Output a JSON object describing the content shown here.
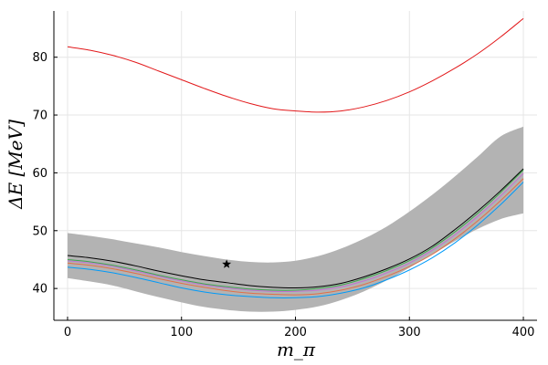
{
  "chart_data": {
    "type": "line",
    "xlabel": "m_π",
    "ylabel": "ΔE [MeV]",
    "xlim": [
      -12,
      412
    ],
    "ylim": [
      34.5,
      88
    ],
    "xticks": [
      0,
      100,
      200,
      300,
      400
    ],
    "yticks": [
      40,
      50,
      60,
      70,
      80
    ],
    "grid": true,
    "legend": "none",
    "band": {
      "color": "#b3b3b3",
      "x": [
        0,
        20,
        40,
        60,
        80,
        100,
        120,
        140,
        160,
        180,
        200,
        220,
        240,
        260,
        280,
        300,
        320,
        340,
        360,
        380,
        400
      ],
      "upper": [
        49.6,
        49.1,
        48.5,
        47.8,
        47.1,
        46.3,
        45.6,
        45.0,
        44.6,
        44.5,
        44.8,
        45.6,
        46.9,
        48.6,
        50.7,
        53.3,
        56.2,
        59.4,
        62.8,
        66.3,
        68.0
      ],
      "lower": [
        41.8,
        41.2,
        40.5,
        39.5,
        38.5,
        37.6,
        36.8,
        36.3,
        36.0,
        36.0,
        36.3,
        36.9,
        38.0,
        39.5,
        41.4,
        43.6,
        45.9,
        48.2,
        50.3,
        52.0,
        53.0
      ]
    },
    "x": [
      0,
      20,
      40,
      60,
      80,
      100,
      120,
      140,
      160,
      180,
      200,
      220,
      240,
      260,
      280,
      300,
      320,
      340,
      360,
      380,
      400
    ],
    "series": [
      {
        "color": "#e2181a",
        "values": [
          81.8,
          81.2,
          80.3,
          79.1,
          77.6,
          76.1,
          74.6,
          73.2,
          72.0,
          71.1,
          70.7,
          70.5,
          70.7,
          71.4,
          72.5,
          74.0,
          75.9,
          78.1,
          80.6,
          83.5,
          86.7
        ]
      },
      {
        "color": "#000000",
        "values": [
          45.7,
          45.3,
          44.7,
          43.9,
          43.0,
          42.2,
          41.5,
          41.0,
          40.5,
          40.2,
          40.1,
          40.3,
          40.9,
          42.0,
          43.4,
          45.1,
          47.3,
          50.2,
          53.4,
          56.9,
          60.7
        ]
      },
      {
        "color": "#3da44d",
        "values": [
          45.0,
          44.6,
          44.0,
          43.2,
          42.3,
          41.5,
          40.8,
          40.3,
          39.9,
          39.7,
          39.7,
          40.0,
          40.6,
          41.7,
          43.1,
          44.8,
          47.0,
          49.8,
          53.0,
          56.6,
          60.5
        ]
      },
      {
        "color": "#c271d2",
        "values": [
          44.8,
          44.4,
          43.8,
          43.0,
          42.1,
          41.3,
          40.6,
          40.1,
          39.7,
          39.5,
          39.5,
          39.7,
          40.3,
          41.3,
          42.7,
          44.4,
          46.6,
          49.3,
          52.5,
          56.0,
          59.9
        ]
      },
      {
        "color": "#e26f46",
        "values": [
          44.4,
          44.0,
          43.4,
          42.6,
          41.7,
          40.9,
          40.2,
          39.6,
          39.2,
          39.0,
          38.9,
          39.1,
          39.7,
          40.7,
          42.1,
          43.8,
          45.9,
          48.6,
          51.7,
          55.2,
          59.0
        ]
      },
      {
        "color": "#009af9",
        "values": [
          43.7,
          43.3,
          42.7,
          41.9,
          41.0,
          40.1,
          39.4,
          38.9,
          38.6,
          38.4,
          38.4,
          38.6,
          39.2,
          40.1,
          41.5,
          43.2,
          45.3,
          47.9,
          51.0,
          54.5,
          58.4
        ]
      }
    ],
    "marker": {
      "symbol": "star",
      "x": 139.6,
      "y": 44.2,
      "color": "#000000"
    }
  }
}
